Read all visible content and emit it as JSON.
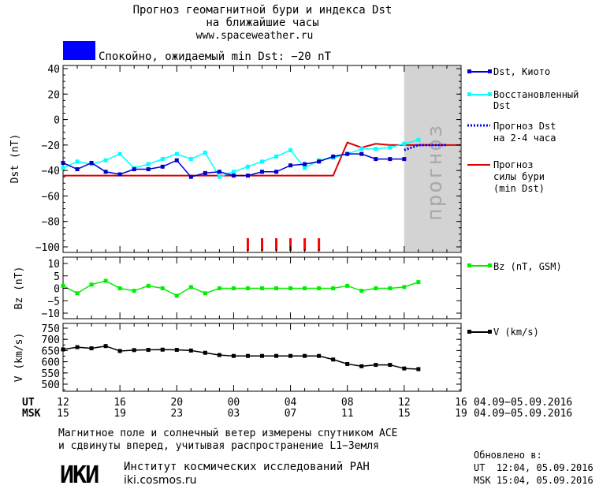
{
  "header": {
    "title_line1": "Прогноз геомагнитной бури и индекса Dst",
    "title_line2": "на ближайшие часы",
    "website": "www.spaceweather.ru"
  },
  "status": {
    "text": "Спокойно, ожидаемый min Dst: −20 nT",
    "color": "#0000ff"
  },
  "forecast_zone_label": "прогноз",
  "legend": {
    "dst_kyoto": "Dst, Киото",
    "restored_line1": "Восстановленный",
    "restored_line2": "Dst",
    "forecast_dst_line1": "Прогноз Dst",
    "forecast_dst_line2": "на 2-4 часа",
    "storm_line1": "Прогноз",
    "storm_line2": "силы бури",
    "storm_line3": "(min Dst)",
    "bz": "Bz (nT, GSM)",
    "v": "V (km/s)"
  },
  "axes": {
    "dst_ylabel": "Dst (nT)",
    "bz_ylabel": "Bz (nT)",
    "v_ylabel": "V (km/s)",
    "dst_ticks": [
      "40",
      "20",
      "0",
      "−20",
      "−40",
      "−60",
      "−80",
      "−100"
    ],
    "bz_ticks": [
      "10",
      "5",
      "0",
      "−5",
      "−10"
    ],
    "v_ticks": [
      "750",
      "700",
      "650",
      "600",
      "550",
      "500"
    ],
    "ut_label": "UT",
    "msk_label": "MSK",
    "ut_ticks": [
      "12",
      "16",
      "20",
      "00",
      "04",
      "08",
      "12",
      "16"
    ],
    "msk_ticks": [
      "15",
      "19",
      "23",
      "03",
      "07",
      "11",
      "15",
      "19"
    ],
    "date_range_ut": "04.09−05.09.2016",
    "date_range_msk": "04.09−05.09.2016"
  },
  "footer": {
    "note_line1": "Магнитное поле и солнечный ветер измерены спутником ACE",
    "note_line2": "и сдвинуты вперед, учитывая распространение L1−Земля",
    "logo_text": "ИКИ",
    "institute": "Институт космических исследований РАН",
    "institute_site": "iki.cosmos.ru",
    "updated_label": "Обновлено в:",
    "updated_ut": "UT  12:04, 05.09.2016",
    "updated_msk": "MSK 15:04, 05.09.2016"
  },
  "chart_data": [
    {
      "type": "line",
      "name": "Dst panel",
      "ylabel": "Dst (nT)",
      "ylim": [
        -100,
        40
      ],
      "xlim": [
        0,
        28
      ],
      "forecast_zone": [
        24,
        28
      ],
      "colors": {
        "kyoto": "#0000cc",
        "restored": "#00ffff",
        "forecast": "#0000ff",
        "storm": "#dd0000",
        "zone": "#d3d3d3",
        "ticks": "#ff0000"
      },
      "series": [
        {
          "name": "Dst, Киото",
          "x": [
            0,
            1,
            2,
            3,
            4,
            5,
            6,
            7,
            8,
            9,
            10,
            11,
            12,
            13,
            14,
            15,
            16,
            17,
            18,
            19,
            20,
            21,
            22,
            23,
            24
          ],
          "y": [
            -34,
            -39,
            -34,
            -41,
            -43,
            -39,
            -39,
            -37,
            -32,
            -45,
            -42,
            -41,
            -44,
            -44,
            -41,
            -41,
            -36,
            -35,
            -33,
            -29,
            -27,
            -27,
            -31,
            -31,
            -31
          ]
        },
        {
          "name": "Восстановленный Dst",
          "x": [
            0,
            1,
            2,
            3,
            4,
            5,
            6,
            7,
            8,
            9,
            10,
            11,
            12,
            13,
            14,
            15,
            16,
            17,
            18,
            19,
            20,
            21,
            22,
            23,
            24,
            25
          ],
          "y": [
            -38,
            -33,
            -35,
            -32,
            -27,
            -38,
            -35,
            -31,
            -27,
            -31,
            -26,
            -45,
            -41,
            -37,
            -33,
            -29,
            -24,
            -38,
            -32,
            -30,
            -27,
            -23,
            -23,
            -22,
            -19,
            -16
          ]
        },
        {
          "name": "Прогноз Dst на 2-4 часа",
          "x": [
            24,
            25,
            26,
            27
          ],
          "y": [
            -24,
            -20,
            -20,
            -20
          ]
        },
        {
          "name": "Прогноз силы бури (min Dst)",
          "x": [
            0,
            19,
            20,
            21,
            22,
            23,
            24,
            28
          ],
          "y": [
            -44,
            -44,
            -18,
            -22,
            -19,
            -20,
            -20,
            -20
          ]
        }
      ],
      "event_ticks_x": [
        13,
        14,
        15,
        16,
        17,
        18
      ]
    },
    {
      "type": "line",
      "name": "Bz panel",
      "ylabel": "Bz (nT)",
      "ylim": [
        -12,
        12
      ],
      "xlim": [
        0,
        28
      ],
      "color": "#00ee00",
      "series": [
        {
          "name": "Bz (nT, GSM)",
          "x": [
            0,
            1,
            2,
            3,
            4,
            5,
            6,
            7,
            8,
            9,
            10,
            11,
            12,
            13,
            14,
            15,
            16,
            17,
            18,
            19,
            20,
            21,
            22,
            23,
            24,
            25
          ],
          "y": [
            1,
            -2,
            1.5,
            3,
            0,
            -1,
            1,
            0,
            -3,
            0.5,
            -2,
            0,
            0,
            0,
            0,
            0,
            0,
            0,
            0,
            0,
            1,
            -1,
            0,
            0,
            0.5,
            2.5
          ]
        }
      ]
    },
    {
      "type": "line",
      "name": "V panel",
      "ylabel": "V (km/s)",
      "ylim": [
        450,
        780
      ],
      "xlim": [
        0,
        28
      ],
      "color": "#000000",
      "series": [
        {
          "name": "V (km/s)",
          "x": [
            0,
            1,
            2,
            3,
            4,
            5,
            6,
            7,
            8,
            9,
            10,
            11,
            12,
            13,
            14,
            15,
            16,
            17,
            18,
            19,
            20,
            21,
            22,
            23,
            24,
            25
          ],
          "y": [
            655,
            665,
            660,
            670,
            648,
            652,
            653,
            654,
            653,
            650,
            640,
            630,
            626,
            626,
            626,
            626,
            626,
            626,
            626,
            610,
            590,
            580,
            586,
            586,
            570,
            567
          ]
        }
      ]
    }
  ]
}
